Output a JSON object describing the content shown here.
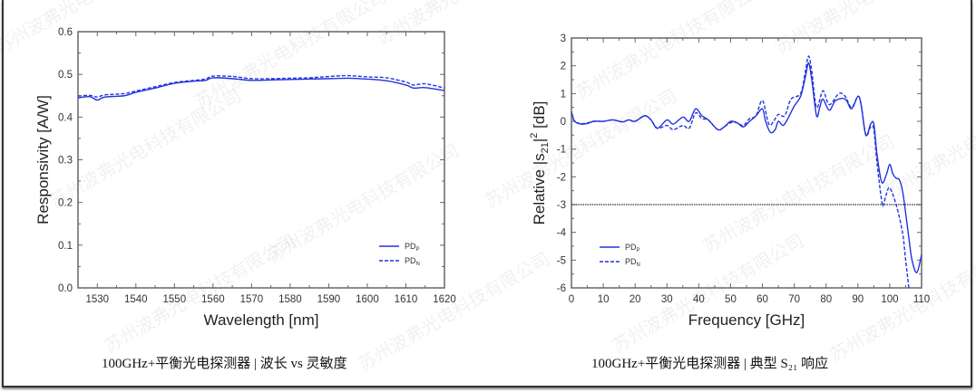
{
  "watermark": "苏州波弗光电科技有限公司",
  "colors": {
    "series": "#2233dd",
    "axis": "#666666",
    "ref_line": "#333333"
  },
  "captions": [
    {
      "text": "100GHz+平衡光电探测器 | 波长 vs 灵敏度"
    },
    {
      "text": "100GHz+平衡光电探测器 | 典型 S₂₁ 响应"
    }
  ],
  "chart_data": [
    {
      "type": "line",
      "xlabel": "Wavelength  [nm]",
      "ylabel": "Responsivity  [A/W]",
      "xlim": [
        1525,
        1620
      ],
      "ylim": [
        0,
        0.6
      ],
      "xticks": [
        1530,
        1540,
        1550,
        1560,
        1570,
        1580,
        1590,
        1600,
        1610,
        1620
      ],
      "yticks": [
        0.0,
        0.1,
        0.2,
        0.3,
        0.4,
        0.5,
        0.6
      ],
      "ytick_labels": [
        "0.0",
        "0.1",
        "0.2",
        "0.3",
        "0.4",
        "0.5",
        "0.6"
      ],
      "legend": "bottom-right",
      "grid": false,
      "series": [
        {
          "name": "PD",
          "sub": "P",
          "style": "solid",
          "x": [
            1525,
            1528,
            1530,
            1532,
            1537,
            1540,
            1545,
            1550,
            1555,
            1558,
            1560,
            1565,
            1570,
            1575,
            1580,
            1585,
            1590,
            1595,
            1600,
            1605,
            1610,
            1612,
            1615,
            1620
          ],
          "y": [
            0.445,
            0.448,
            0.44,
            0.447,
            0.45,
            0.458,
            0.468,
            0.479,
            0.484,
            0.486,
            0.492,
            0.49,
            0.486,
            0.487,
            0.488,
            0.489,
            0.49,
            0.491,
            0.489,
            0.485,
            0.475,
            0.468,
            0.469,
            0.462
          ]
        },
        {
          "name": "PD",
          "sub": "N",
          "style": "dashed",
          "x": [
            1525,
            1528,
            1530,
            1532,
            1537,
            1540,
            1545,
            1550,
            1555,
            1558,
            1560,
            1565,
            1570,
            1575,
            1580,
            1585,
            1590,
            1595,
            1600,
            1605,
            1610,
            1612,
            1615,
            1620
          ],
          "y": [
            0.449,
            0.451,
            0.447,
            0.452,
            0.455,
            0.461,
            0.471,
            0.481,
            0.486,
            0.489,
            0.496,
            0.495,
            0.49,
            0.49,
            0.491,
            0.492,
            0.495,
            0.497,
            0.494,
            0.492,
            0.482,
            0.475,
            0.478,
            0.468
          ]
        }
      ]
    },
    {
      "type": "line",
      "xlabel": "Frequency  [GHz]",
      "ylabel": "Relative |s21|2  [dB]",
      "xlim": [
        0,
        110
      ],
      "ylim": [
        -6,
        3
      ],
      "xticks": [
        0,
        10,
        20,
        30,
        40,
        50,
        60,
        70,
        80,
        90,
        100,
        110
      ],
      "yticks": [
        -6,
        -5,
        -4,
        -3,
        -2,
        -1,
        0,
        1,
        2,
        3
      ],
      "reference_line": -3,
      "legend": "bottom-left",
      "grid": false,
      "series": [
        {
          "name": "PD",
          "sub": "P",
          "style": "solid",
          "x": [
            0,
            1,
            3,
            5,
            7,
            10,
            13,
            16,
            18,
            20,
            23,
            25,
            27,
            30,
            32,
            35,
            37,
            39,
            41,
            43,
            46,
            48,
            50,
            52,
            54,
            56,
            58,
            60,
            61,
            62.5,
            64,
            65,
            66.5,
            68,
            70,
            72,
            73.5,
            74.5,
            75.5,
            77,
            78,
            79,
            81,
            83,
            86,
            88,
            90,
            91,
            92.5,
            94,
            95,
            96,
            97.5,
            99,
            100,
            101,
            102,
            103,
            104,
            105,
            106,
            107,
            108.5,
            110
          ],
          "y": [
            0.35,
            0,
            -0.1,
            -0.08,
            0,
            0,
            0.05,
            -0.02,
            0.05,
            0,
            0.2,
            0.05,
            -0.25,
            0.05,
            -0.1,
            0.15,
            0,
            0.45,
            0.2,
            0.05,
            -0.3,
            -0.2,
            0,
            -0.05,
            -0.2,
            0,
            0.2,
            0.45,
            0,
            -0.4,
            -0.3,
            0,
            -0.15,
            0.1,
            0.55,
            0.9,
            1.6,
            2.1,
            1.5,
            0.2,
            0.5,
            0.8,
            0.4,
            0.75,
            0.8,
            0.45,
            0.9,
            0.6,
            -0.5,
            -0.1,
            -0.1,
            -1.2,
            -2.2,
            -1.9,
            -1.55,
            -1.9,
            -2.05,
            -2.1,
            -2.5,
            -3.3,
            -4.2,
            -5,
            -5.45,
            -4.8
          ]
        },
        {
          "name": "PD",
          "sub": "N",
          "style": "dashed",
          "x": [
            0,
            1,
            3,
            5,
            7,
            10,
            13,
            16,
            18,
            20,
            23,
            25,
            27,
            30,
            32,
            35,
            37,
            39,
            41,
            43,
            46,
            48,
            50,
            52,
            54,
            56,
            58,
            60,
            62,
            63.5,
            65,
            67,
            69,
            72,
            73.5,
            74.5,
            75.5,
            77,
            79,
            81,
            84,
            86,
            88,
            90,
            91,
            92.5,
            94,
            95,
            96,
            97.5,
            98,
            99,
            100,
            102,
            104,
            105,
            106
          ],
          "y": [
            0.3,
            0,
            -0.08,
            -0.06,
            0,
            0,
            0.05,
            -0.02,
            0.05,
            0,
            0.2,
            0.05,
            -0.25,
            -0.15,
            -0.3,
            -0.15,
            -0.25,
            0.3,
            0.1,
            0.05,
            -0.3,
            -0.2,
            -0.05,
            -0.05,
            -0.15,
            0.1,
            0.2,
            0.75,
            -0.1,
            0.0,
            0.25,
            0.2,
            0.8,
            1.0,
            1.8,
            2.35,
            1.8,
            0.5,
            1.1,
            0.6,
            1.0,
            0.9,
            0.5,
            0.9,
            0.6,
            -0.5,
            -0.2,
            -0.3,
            -1.5,
            -2.9,
            -3.0,
            -2.6,
            -2.4,
            -3.0,
            -4.0,
            -5.0,
            -6.0
          ]
        }
      ]
    }
  ]
}
